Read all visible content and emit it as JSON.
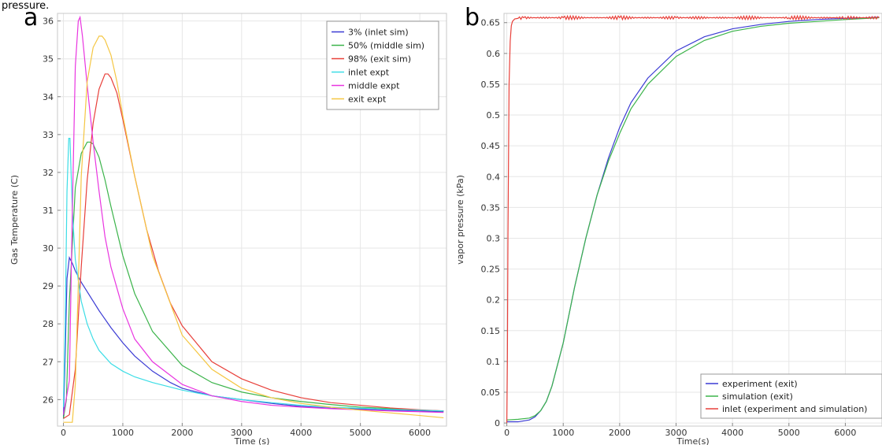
{
  "caption_fragment": "pressure.",
  "chart_data": [
    {
      "panel_label": "a",
      "type": "line",
      "title": "",
      "xlabel": "Time (s)",
      "ylabel": "Gas Temperature (C)",
      "xlim": [
        -100,
        6450
      ],
      "ylim": [
        25.3,
        36.2
      ],
      "xticks": [
        0,
        1000,
        2000,
        3000,
        4000,
        5000,
        6000
      ],
      "yticks": [
        26,
        27,
        28,
        29,
        30,
        31,
        32,
        33,
        34,
        35,
        36
      ],
      "grid": true,
      "legend_position": "top-right",
      "series": [
        {
          "name": "3% (inlet sim)",
          "color": "#3b3bd4",
          "x": [
            0,
            30,
            60,
            100,
            150,
            200,
            300,
            400,
            500,
            600,
            800,
            1000,
            1200,
            1500,
            1800,
            2000,
            2500,
            3000,
            3500,
            4000,
            4500,
            5000,
            5500,
            6000,
            6400
          ],
          "y": [
            25.5,
            27.2,
            29.2,
            29.75,
            29.6,
            29.4,
            29.1,
            28.85,
            28.6,
            28.35,
            27.9,
            27.5,
            27.15,
            26.75,
            26.45,
            26.3,
            26.1,
            26.0,
            25.9,
            25.82,
            25.77,
            25.75,
            25.72,
            25.7,
            25.68
          ]
        },
        {
          "name": "50% (middle sim)",
          "color": "#3cb44b",
          "x": [
            0,
            50,
            100,
            200,
            300,
            400,
            450,
            500,
            600,
            700,
            800,
            1000,
            1200,
            1500,
            2000,
            2500,
            3000,
            3500,
            4000,
            4500,
            5000,
            5500,
            6000,
            6400
          ],
          "y": [
            25.5,
            26.0,
            28.6,
            31.6,
            32.5,
            32.8,
            32.8,
            32.75,
            32.4,
            31.8,
            31.1,
            29.8,
            28.8,
            27.8,
            26.9,
            26.45,
            26.2,
            26.05,
            25.95,
            25.87,
            25.8,
            25.76,
            25.72,
            25.7
          ]
        },
        {
          "name": "98% (exit sim)",
          "color": "#e8403a",
          "x": [
            0,
            100,
            200,
            300,
            400,
            500,
            600,
            700,
            750,
            800,
            900,
            1000,
            1200,
            1400,
            1600,
            1800,
            2000,
            2500,
            3000,
            3500,
            4000,
            4500,
            5000,
            5500,
            6000,
            6400
          ],
          "y": [
            25.5,
            25.6,
            26.8,
            29.5,
            31.8,
            33.3,
            34.2,
            34.6,
            34.6,
            34.5,
            34.1,
            33.4,
            31.9,
            30.5,
            29.4,
            28.55,
            27.95,
            27.0,
            26.55,
            26.25,
            26.05,
            25.92,
            25.85,
            25.78,
            25.73,
            25.7
          ]
        },
        {
          "name": "inlet expt",
          "color": "#3cdde6",
          "x": [
            0,
            30,
            60,
            90,
            110,
            150,
            200,
            300,
            400,
            500,
            600,
            800,
            1000,
            1200,
            1500,
            2000,
            2500,
            3000,
            3500,
            4000,
            4500,
            5000,
            5500,
            6000,
            6400
          ],
          "y": [
            25.8,
            28.0,
            31.5,
            32.9,
            32.9,
            31.0,
            29.7,
            28.6,
            28.0,
            27.6,
            27.3,
            26.95,
            26.75,
            26.6,
            26.45,
            26.25,
            26.1,
            26.0,
            25.92,
            25.85,
            25.8,
            25.77,
            25.74,
            25.72,
            25.7
          ]
        },
        {
          "name": "middle expt",
          "color": "#e935e0",
          "x": [
            0,
            100,
            150,
            200,
            250,
            280,
            320,
            400,
            500,
            600,
            700,
            800,
            1000,
            1200,
            1500,
            2000,
            2500,
            3000,
            3500,
            4000,
            4500,
            5000,
            5500,
            6000,
            6400
          ],
          "y": [
            25.6,
            26.5,
            31.0,
            34.8,
            36.0,
            36.1,
            35.6,
            34.3,
            32.8,
            31.5,
            30.3,
            29.5,
            28.4,
            27.6,
            27.0,
            26.4,
            26.1,
            25.95,
            25.85,
            25.8,
            25.76,
            25.73,
            25.7,
            25.68,
            25.66
          ]
        },
        {
          "name": "exit expt",
          "color": "#f5c642",
          "x": [
            0,
            150,
            200,
            250,
            300,
            400,
            500,
            600,
            650,
            700,
            800,
            900,
            1000,
            1200,
            1500,
            2000,
            2500,
            3000,
            3500,
            4000,
            4500,
            5000,
            5500,
            6000,
            6400
          ],
          "y": [
            25.4,
            25.4,
            26.4,
            29.0,
            31.9,
            34.4,
            35.3,
            35.6,
            35.6,
            35.5,
            35.1,
            34.4,
            33.5,
            31.9,
            29.8,
            27.7,
            26.8,
            26.3,
            26.05,
            25.9,
            25.8,
            25.72,
            25.65,
            25.58,
            25.52
          ]
        }
      ]
    },
    {
      "panel_label": "b",
      "type": "line",
      "title": "",
      "xlabel": "Time(s)",
      "ylabel": "vapor pressure (kPa)",
      "xlim": [
        -50,
        6650
      ],
      "ylim": [
        -0.005,
        0.665
      ],
      "xticks": [
        0,
        1000,
        2000,
        3000,
        4000,
        5000,
        6000
      ],
      "yticks": [
        0,
        0.05,
        0.1,
        0.15,
        0.2,
        0.25,
        0.3,
        0.35,
        0.4,
        0.45,
        0.5,
        0.55,
        0.6,
        0.65
      ],
      "grid": true,
      "legend_position": "bottom-right",
      "series": [
        {
          "name": "experiment (exit)",
          "color": "#3b3bd4",
          "x": [
            0,
            200,
            400,
            500,
            600,
            700,
            800,
            1000,
            1200,
            1400,
            1600,
            1800,
            2000,
            2200,
            2500,
            3000,
            3500,
            4000,
            4500,
            5000,
            5500,
            6000,
            6400,
            6600
          ],
          "y": [
            0.002,
            0.002,
            0.005,
            0.01,
            0.02,
            0.035,
            0.06,
            0.13,
            0.22,
            0.3,
            0.37,
            0.43,
            0.48,
            0.52,
            0.56,
            0.604,
            0.627,
            0.64,
            0.647,
            0.652,
            0.655,
            0.657,
            0.658,
            0.659
          ]
        },
        {
          "name": "simulation (exit)",
          "color": "#3cb44b",
          "x": [
            0,
            200,
            400,
            500,
            600,
            700,
            800,
            1000,
            1200,
            1400,
            1600,
            1800,
            2000,
            2200,
            2500,
            3000,
            3500,
            4000,
            4500,
            5000,
            5500,
            6000,
            6400,
            6600
          ],
          "y": [
            0.005,
            0.006,
            0.008,
            0.012,
            0.02,
            0.035,
            0.06,
            0.13,
            0.22,
            0.3,
            0.37,
            0.425,
            0.47,
            0.51,
            0.55,
            0.595,
            0.621,
            0.636,
            0.644,
            0.649,
            0.652,
            0.655,
            0.657,
            0.658
          ]
        },
        {
          "name": "inlet (experiment and simulation)",
          "color": "#e8403a",
          "x": [
            0,
            10,
            20,
            40,
            60,
            80,
            100,
            140,
            200,
            300,
            500,
            1000,
            2000,
            3000,
            4000,
            5000,
            6000,
            6600
          ],
          "y": [
            0.0,
            0.1,
            0.3,
            0.55,
            0.62,
            0.645,
            0.652,
            0.656,
            0.657,
            0.658,
            0.658,
            0.658,
            0.658,
            0.658,
            0.658,
            0.658,
            0.658,
            0.658
          ],
          "noise_amplitude": 0.003
        }
      ]
    }
  ]
}
